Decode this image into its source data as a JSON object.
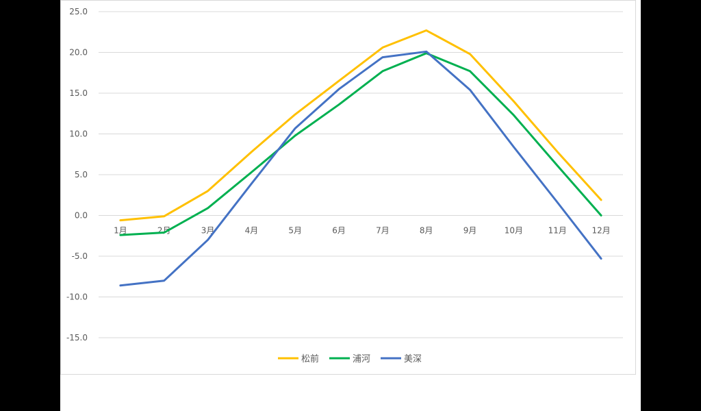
{
  "chart_data": {
    "type": "line",
    "categories": [
      "1月",
      "2月",
      "3月",
      "4月",
      "5月",
      "6月",
      "7月",
      "8月",
      "9月",
      "10月",
      "11月",
      "12月"
    ],
    "ylim": [
      -15,
      25
    ],
    "yticks": [
      "25.0",
      "20.0",
      "15.0",
      "10.0",
      "5.0",
      "0.0",
      "-5.0",
      "-10.0",
      "-15.0"
    ],
    "ytick_values": [
      25,
      20,
      15,
      10,
      5,
      0,
      -5,
      -10,
      -15
    ],
    "grid": true,
    "legend_position": "bottom",
    "series": [
      {
        "name": "松前",
        "color": "#FFC000",
        "values": [
          -0.6,
          -0.1,
          3.0,
          7.8,
          12.4,
          16.5,
          20.6,
          22.7,
          19.8,
          14.0,
          7.8,
          1.9
        ]
      },
      {
        "name": "浦河",
        "color": "#00B050",
        "values": [
          -2.4,
          -2.1,
          0.9,
          5.3,
          9.8,
          13.6,
          17.7,
          19.9,
          17.7,
          12.3,
          6.1,
          0.0
        ]
      },
      {
        "name": "美深",
        "color": "#4472C4",
        "values": [
          -8.6,
          -8.0,
          -3.0,
          3.9,
          10.7,
          15.5,
          19.4,
          20.1,
          15.4,
          8.4,
          1.6,
          -5.3
        ]
      }
    ]
  }
}
